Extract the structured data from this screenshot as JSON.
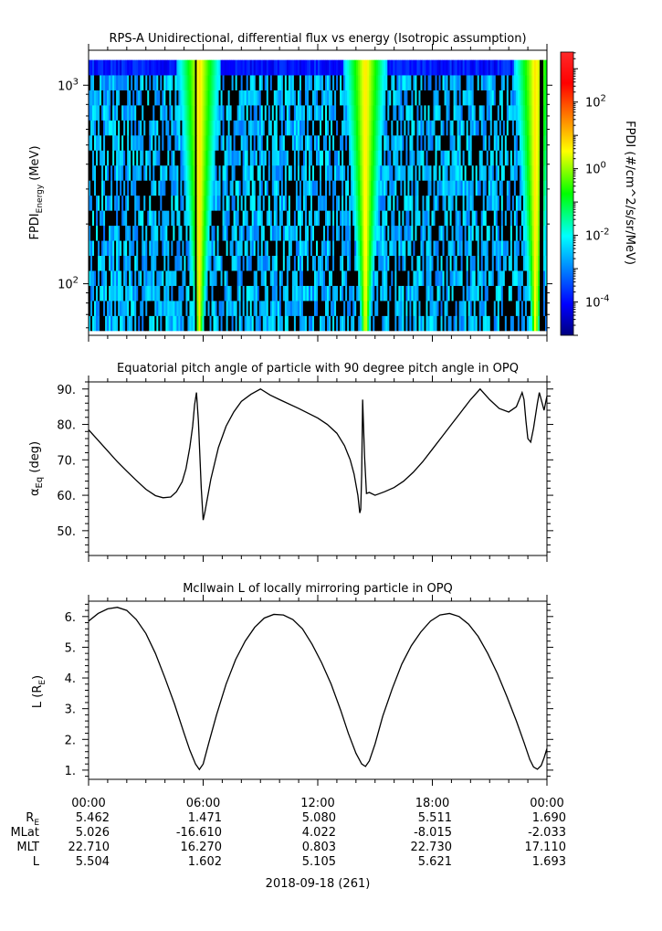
{
  "chart_data": [
    {
      "type": "heatmap",
      "title": "RPS-A Unidirectional, differential flux vs energy (Isotropic assumption)",
      "ylabel_main": "FPDI",
      "ylabel_sub": "Energy",
      "ylabel_unit": " (MeV)",
      "yscale": "log",
      "ylim": [
        55,
        1500
      ],
      "y_ticks": [
        {
          "base": "10",
          "exp": "2",
          "value": 100
        },
        {
          "base": "10",
          "exp": "3",
          "value": 1000
        }
      ],
      "energy_range": [
        58,
        1340
      ],
      "xlim_hours": [
        0,
        24
      ],
      "colorbar": {
        "label": "FPDI (#/cm^2/s/sr/MeV)",
        "scale": "log",
        "range_exp": [
          -5,
          3.5
        ],
        "ticks": [
          {
            "base": "10",
            "exp": "2",
            "value_exp": 2
          },
          {
            "base": "10",
            "exp": "0",
            "value_exp": 0
          },
          {
            "base": "10",
            "exp": "-2",
            "value_exp": -2
          },
          {
            "base": "10",
            "exp": "-4",
            "value_exp": -4
          }
        ]
      },
      "flux_peaks_hours": [
        5.8,
        14.5,
        23.4
      ],
      "data_gap_hours": [
        5.6,
        23.7
      ]
    },
    {
      "type": "line",
      "title": "Equatorial pitch angle of particle with 90 degree pitch angle in OPQ",
      "ylabel_main": "α",
      "ylabel_sub": "Eq",
      "ylabel_unit": " (deg)",
      "ylim": [
        43,
        92
      ],
      "y_ticks": [
        50,
        60,
        70,
        80,
        90
      ],
      "series": [
        {
          "x": [
            0,
            0.5,
            1,
            1.5,
            2,
            2.5,
            3,
            3.5,
            3.9,
            4.3,
            4.6,
            4.9,
            5.1,
            5.3,
            5.45,
            5.55,
            5.65,
            5.75,
            5.9,
            6.0,
            6.1,
            6.4,
            6.8,
            7.2,
            7.6,
            8.0,
            8.5,
            9.0,
            9.5,
            10,
            11,
            12,
            12.5,
            13,
            13.4,
            13.7,
            13.9,
            14.1,
            14.2,
            14.25,
            14.3,
            14.35,
            14.45,
            14.55,
            14.7,
            15,
            15.5,
            16,
            16.5,
            17,
            17.5,
            18,
            18.5,
            19,
            19.5,
            20,
            20.5,
            21,
            21.5,
            22,
            22.4,
            22.7,
            22.8,
            22.9,
            23.0,
            23.15,
            23.3,
            23.5,
            23.6,
            23.7,
            23.85,
            24
          ],
          "values": [
            78.5,
            75.5,
            72.5,
            69.5,
            66.8,
            64.2,
            61.7,
            59.9,
            59.3,
            59.5,
            61.0,
            63.8,
            67.5,
            73.5,
            79.5,
            85.5,
            89.0,
            81.0,
            62.0,
            53.0,
            55.5,
            64.5,
            73.5,
            79.5,
            83.5,
            86.5,
            88.5,
            90.0,
            88.3,
            87.0,
            84.5,
            81.8,
            80.0,
            77.5,
            74.0,
            70.0,
            66.0,
            60.0,
            55.0,
            56.0,
            66.0,
            87.0,
            71.0,
            60.5,
            60.8,
            60.0,
            61.0,
            62.2,
            64.0,
            66.5,
            69.5,
            73.0,
            76.5,
            80.0,
            83.5,
            87.0,
            90.0,
            87.0,
            84.5,
            83.5,
            85.0,
            89.0,
            87.0,
            81.0,
            76.0,
            75.0,
            79.0,
            86.0,
            89.0,
            87.0,
            84.0,
            88.0
          ]
        }
      ]
    },
    {
      "type": "line",
      "title": "McIlwain L of locally mirroring particle in OPQ",
      "ylabel_main": "L (R",
      "ylabel_sub": "E",
      "ylabel_unit": ")",
      "ylim": [
        0.7,
        6.5
      ],
      "y_ticks": [
        1,
        2,
        3,
        4,
        5,
        6
      ],
      "series": [
        {
          "x": [
            0,
            0.5,
            1,
            1.5,
            2,
            2.5,
            3,
            3.5,
            4,
            4.5,
            5,
            5.3,
            5.6,
            5.8,
            6.0,
            6.3,
            6.7,
            7.2,
            7.7,
            8.2,
            8.7,
            9.2,
            9.7,
            10.2,
            10.7,
            11.2,
            11.7,
            12.2,
            12.7,
            13.2,
            13.6,
            14.0,
            14.3,
            14.5,
            14.7,
            15.0,
            15.4,
            15.9,
            16.4,
            16.9,
            17.4,
            17.9,
            18.4,
            18.9,
            19.4,
            19.9,
            20.4,
            20.9,
            21.4,
            21.9,
            22.4,
            22.8,
            23.1,
            23.3,
            23.5,
            23.7,
            23.85,
            24
          ],
          "values": [
            5.85,
            6.1,
            6.25,
            6.3,
            6.2,
            5.9,
            5.45,
            4.8,
            4.0,
            3.15,
            2.2,
            1.65,
            1.2,
            1.02,
            1.2,
            1.9,
            2.8,
            3.8,
            4.6,
            5.2,
            5.65,
            5.95,
            6.07,
            6.05,
            5.9,
            5.6,
            5.1,
            4.5,
            3.8,
            2.95,
            2.2,
            1.55,
            1.2,
            1.12,
            1.3,
            1.85,
            2.75,
            3.65,
            4.45,
            5.05,
            5.5,
            5.85,
            6.05,
            6.1,
            6.0,
            5.75,
            5.35,
            4.8,
            4.15,
            3.4,
            2.6,
            1.9,
            1.35,
            1.1,
            1.03,
            1.15,
            1.4,
            1.7
          ]
        }
      ]
    }
  ],
  "x_axis": {
    "tick_labels": [
      "00:00",
      "06:00",
      "12:00",
      "18:00",
      "00:00"
    ],
    "tick_hours": [
      0,
      6,
      12,
      18,
      24
    ],
    "date_label": "2018-09-18 (261)"
  },
  "ephemeris": {
    "rows": [
      {
        "label_main": "R",
        "label_sub": "E",
        "values": [
          "5.462",
          "1.471",
          "5.080",
          "5.511",
          "1.690"
        ]
      },
      {
        "label_main": "MLat",
        "label_sub": "",
        "values": [
          "5.026",
          "-16.610",
          "4.022",
          "-8.015",
          "-2.033"
        ]
      },
      {
        "label_main": "MLT",
        "label_sub": "",
        "values": [
          "22.710",
          "16.270",
          "0.803",
          "22.730",
          "17.110"
        ]
      },
      {
        "label_main": "L",
        "label_sub": "",
        "values": [
          "5.504",
          "1.602",
          "5.105",
          "5.621",
          "1.693"
        ]
      }
    ]
  }
}
